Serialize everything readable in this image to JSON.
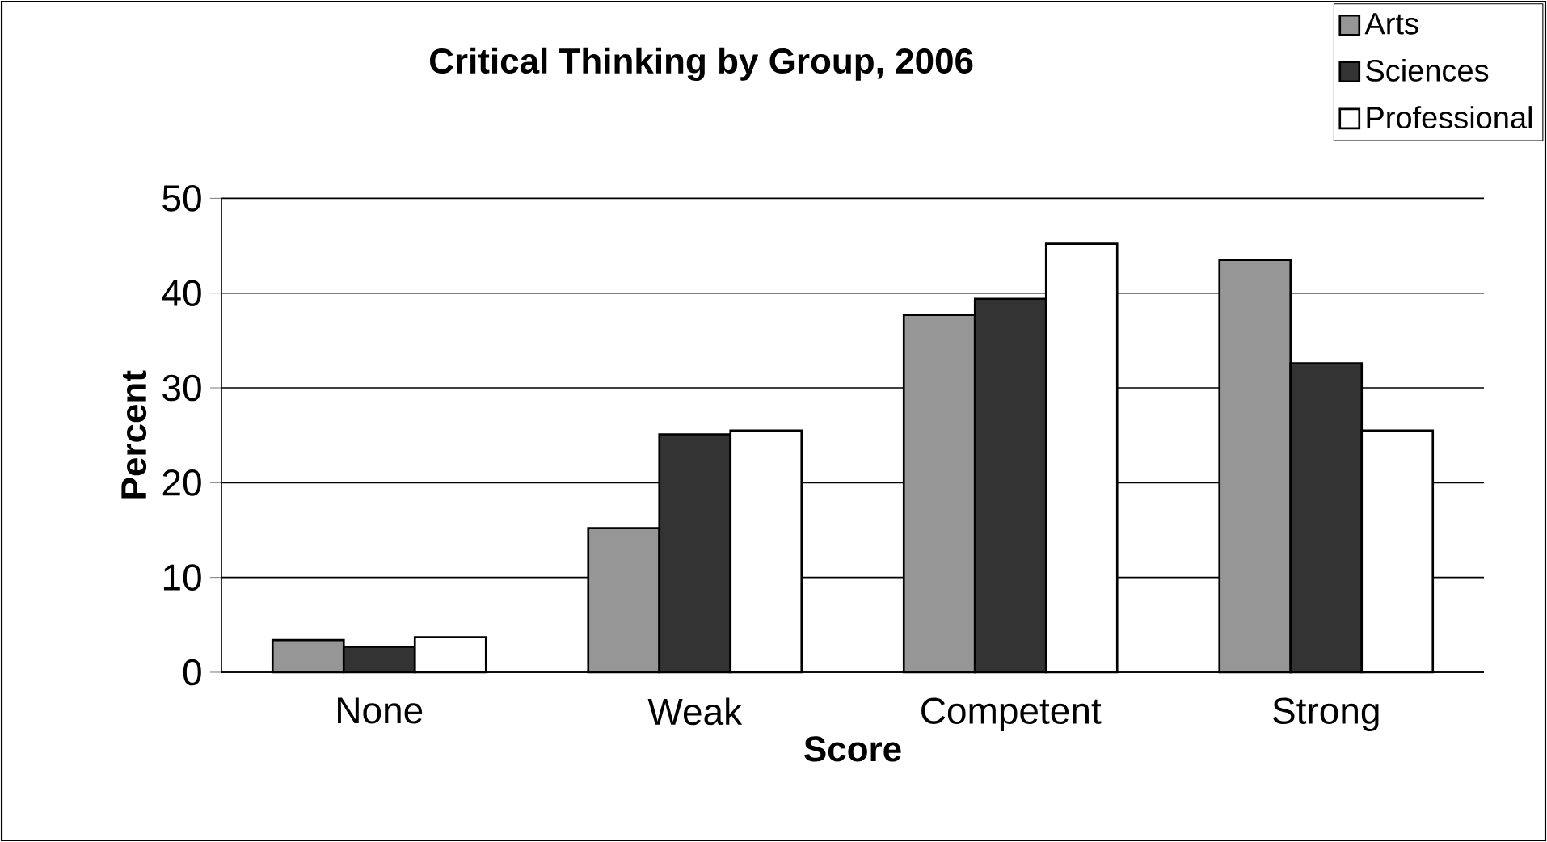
{
  "chart_data": {
    "type": "bar",
    "title": "Critical Thinking by Group, 2006",
    "xlabel": "Score",
    "ylabel": "Percent",
    "categories": [
      "None",
      "Weak",
      "Competent",
      "Strong"
    ],
    "series": [
      {
        "name": "Arts",
        "color": "#969696",
        "values": [
          3.4,
          15.2,
          37.7,
          43.5
        ]
      },
      {
        "name": "Sciences",
        "color": "#333333",
        "values": [
          2.7,
          25.1,
          39.4,
          32.6
        ]
      },
      {
        "name": "Professional",
        "color": "#ffffff",
        "values": [
          3.7,
          25.5,
          45.2,
          25.5
        ]
      }
    ],
    "ylim": [
      0,
      50
    ],
    "yticks": [
      0,
      10,
      20,
      30,
      40,
      50
    ],
    "grid": "y",
    "legend": "top right"
  }
}
